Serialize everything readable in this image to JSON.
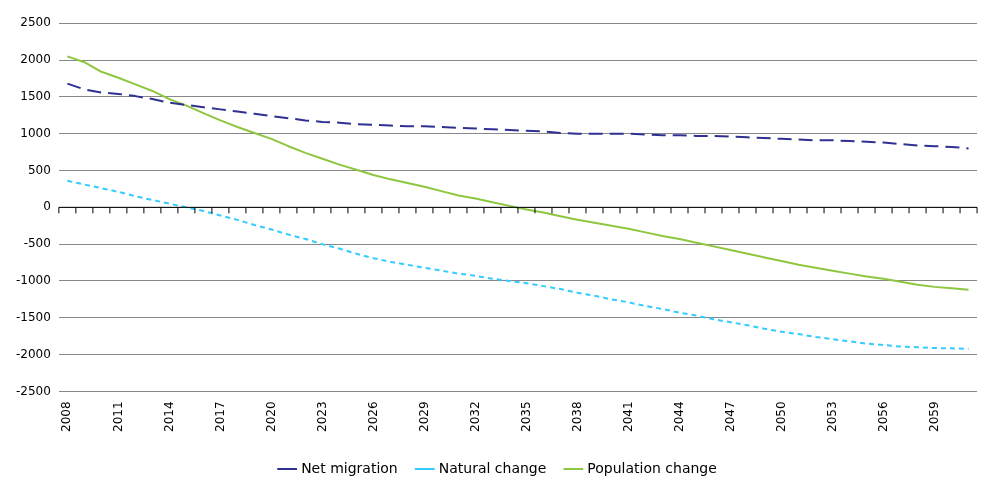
{
  "chart_data": {
    "type": "line",
    "categories": [
      "2008",
      null,
      null,
      "2011",
      null,
      null,
      "2014",
      null,
      null,
      "2017",
      null,
      null,
      "2020",
      null,
      null,
      "2023",
      null,
      null,
      "2026",
      null,
      null,
      "2029",
      null,
      null,
      "2032",
      null,
      null,
      "2035",
      null,
      null,
      "2038",
      null,
      null,
      "2041",
      null,
      null,
      "2044",
      null,
      null,
      "2047",
      null,
      null,
      "2050",
      null,
      null,
      "2053",
      null,
      null,
      "2056",
      null,
      null,
      "2059",
      null,
      null
    ],
    "series": [
      {
        "name": "Net migration",
        "color": "#2e3192",
        "line_style": "dashed",
        "values": [
          1680,
          1600,
          1560,
          1540,
          1510,
          1470,
          1420,
          1390,
          1360,
          1330,
          1300,
          1270,
          1240,
          1210,
          1180,
          1160,
          1150,
          1130,
          1120,
          1110,
          1100,
          1100,
          1090,
          1080,
          1070,
          1060,
          1050,
          1040,
          1030,
          1010,
          1000,
          1000,
          1000,
          1000,
          990,
          980,
          980,
          970,
          970,
          960,
          950,
          940,
          930,
          920,
          910,
          910,
          900,
          890,
          880,
          860,
          840,
          830,
          820,
          800
        ]
      },
      {
        "name": "Natural change",
        "color": "#33ccff",
        "line_style": "dotted",
        "values": [
          360,
          310,
          260,
          210,
          150,
          100,
          50,
          0,
          -50,
          -110,
          -170,
          -240,
          -300,
          -370,
          -430,
          -500,
          -560,
          -630,
          -690,
          -740,
          -780,
          -820,
          -860,
          -900,
          -930,
          -970,
          -1000,
          -1030,
          -1070,
          -1110,
          -1160,
          -1200,
          -1250,
          -1290,
          -1340,
          -1380,
          -1430,
          -1470,
          -1520,
          -1560,
          -1600,
          -1650,
          -1690,
          -1720,
          -1760,
          -1790,
          -1820,
          -1850,
          -1870,
          -1890,
          -1900,
          -1910,
          -1915,
          -1920
        ]
      },
      {
        "name": "Population change",
        "color": "#8dc63f",
        "line_style": "solid",
        "values": [
          2050,
          1970,
          1840,
          1760,
          1670,
          1580,
          1470,
          1380,
          1280,
          1180,
          1090,
          1010,
          930,
          830,
          740,
          660,
          580,
          510,
          440,
          380,
          330,
          280,
          220,
          160,
          120,
          70,
          20,
          -30,
          -70,
          -120,
          -170,
          -210,
          -250,
          -290,
          -340,
          -390,
          -430,
          -480,
          -530,
          -580,
          -630,
          -680,
          -730,
          -780,
          -820,
          -860,
          -900,
          -940,
          -970,
          -1010,
          -1050,
          -1080,
          -1100,
          -1120
        ]
      }
    ],
    "ylim": [
      -2500,
      2500
    ],
    "yticks": [
      -2500,
      -2000,
      -1500,
      -1000,
      -500,
      0,
      500,
      1000,
      1500,
      2000,
      2500
    ],
    "grid": "y",
    "legend": "bottom",
    "marker": "none"
  }
}
